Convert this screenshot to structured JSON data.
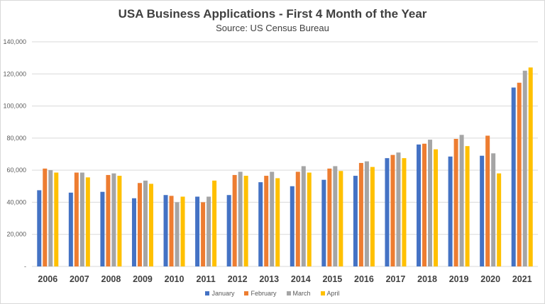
{
  "chart_data": {
    "type": "bar",
    "title": "USA Business Applications - First 4 Month of the Year",
    "subtitle": "Source: US Census Bureau",
    "categories": [
      "2006",
      "2007",
      "2008",
      "2009",
      "2010",
      "2011",
      "2012",
      "2013",
      "2014",
      "2015",
      "2016",
      "2017",
      "2018",
      "2019",
      "2020",
      "2021"
    ],
    "ylim": [
      0,
      140000
    ],
    "y_ticks": [
      "-",
      "20,000",
      "40,000",
      "60,000",
      "80,000",
      "100,000",
      "120,000",
      "140,000"
    ],
    "y_tick_values": [
      0,
      20000,
      40000,
      60000,
      80000,
      100000,
      120000,
      140000
    ],
    "grid": true,
    "legend_position": "bottom",
    "series": [
      {
        "name": "January",
        "color": "#4472c4",
        "values": [
          47500,
          46000,
          46500,
          42500,
          44500,
          43500,
          44500,
          52500,
          50000,
          54000,
          56500,
          67500,
          76000,
          68500,
          69000,
          111500
        ]
      },
      {
        "name": "February",
        "color": "#ed7d31",
        "values": [
          61000,
          58500,
          57000,
          52000,
          44000,
          40000,
          57000,
          56500,
          59000,
          61000,
          64500,
          69500,
          76500,
          79500,
          81500,
          114500
        ]
      },
      {
        "name": "March",
        "color": "#a5a5a5",
        "values": [
          60000,
          58500,
          58000,
          53500,
          40000,
          43500,
          59000,
          59000,
          62500,
          62500,
          65500,
          71000,
          79000,
          82000,
          70500,
          122000
        ]
      },
      {
        "name": "April",
        "color": "#ffc000",
        "values": [
          58500,
          55500,
          56500,
          51500,
          43500,
          53500,
          56500,
          55000,
          58500,
          59500,
          62000,
          67500,
          73000,
          75000,
          58000,
          124000
        ]
      }
    ]
  }
}
